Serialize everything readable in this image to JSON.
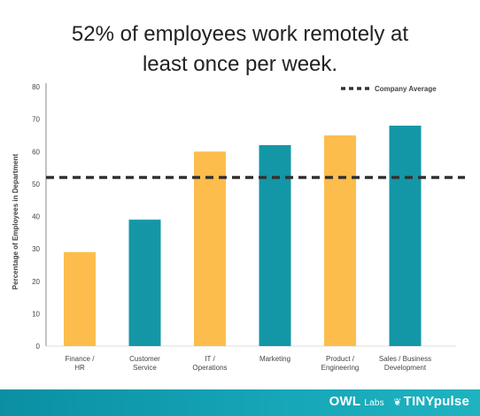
{
  "title_lines": [
    "52% of employees work remotely at",
    "least once per week."
  ],
  "colors": {
    "yellow": "#FDBD4C",
    "teal": "#1397A6",
    "average_line": "#333333",
    "axis": "#888888"
  },
  "footer": {
    "owl": "OWL",
    "labs": "Labs",
    "tiny": "TINYpulse"
  },
  "chart_data": {
    "type": "bar",
    "title": "52% of employees work remotely at least once per week.",
    "xlabel": "",
    "ylabel": "Percentage of Employees in Department",
    "ylim": [
      0,
      80
    ],
    "yticks": [
      0,
      10,
      20,
      30,
      40,
      50,
      60,
      70,
      80
    ],
    "grid": false,
    "categories": [
      [
        "Finance /",
        "HR"
      ],
      [
        "Customer",
        "Service"
      ],
      [
        "IT /",
        "Operations"
      ],
      [
        "Marketing"
      ],
      [
        "Product /",
        "Engineering"
      ],
      [
        "Sales / Business",
        "Development"
      ]
    ],
    "values": [
      29,
      39,
      60,
      62,
      65,
      68
    ],
    "bar_colors": [
      "#FDBD4C",
      "#1397A6",
      "#FDBD4C",
      "#1397A6",
      "#FDBD4C",
      "#1397A6"
    ],
    "reference_line": {
      "label": "Company Average",
      "value": 52,
      "style": "dashed"
    },
    "legend": {
      "position": "top-right",
      "entries": [
        "Company Average"
      ]
    }
  }
}
